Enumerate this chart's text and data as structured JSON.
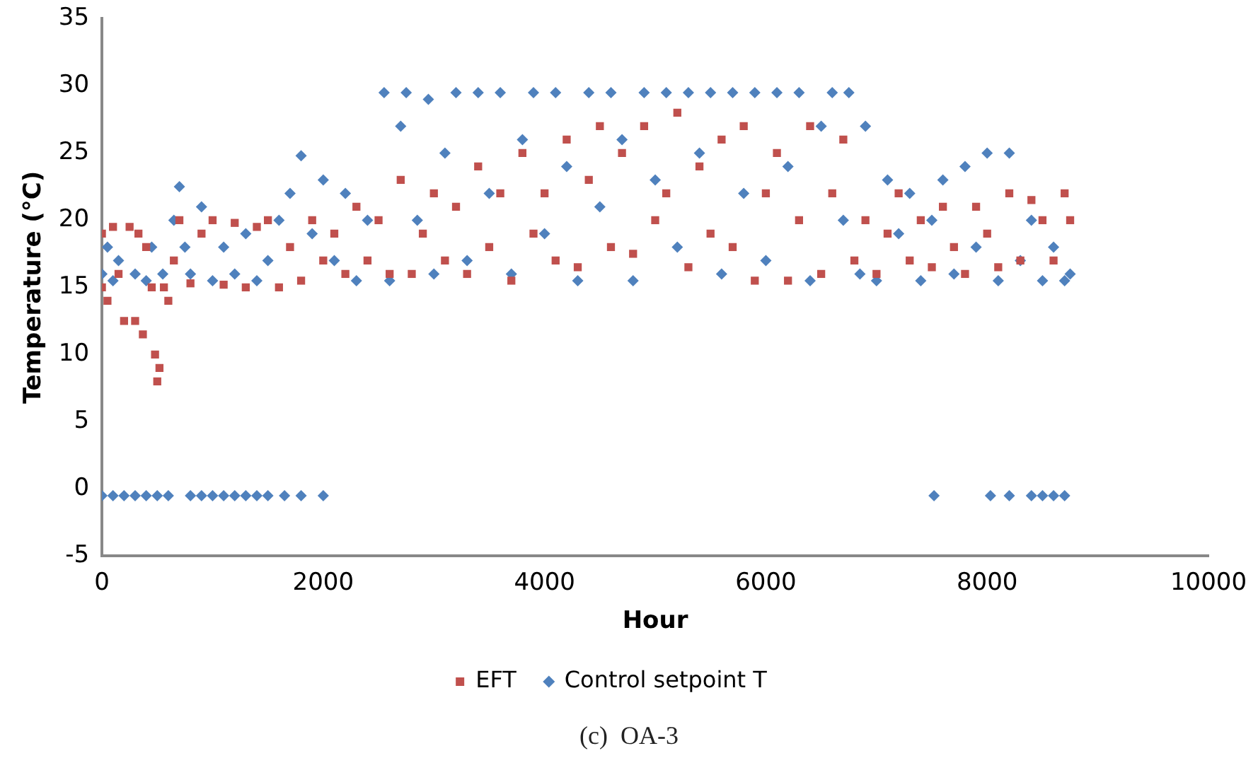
{
  "chart_data": {
    "type": "scatter",
    "xlabel": "Hour",
    "ylabel": "Temperature (°C)",
    "xlim": [
      0,
      10000
    ],
    "xticks": [
      0,
      2000,
      4000,
      6000,
      8000,
      10000
    ],
    "ylim": [
      -5,
      35
    ],
    "yticks": [
      -5,
      0,
      5,
      10,
      15,
      20,
      25,
      30,
      35
    ],
    "grid": false,
    "legend": "bottom",
    "annotations": [
      "(c)  OA-3"
    ],
    "series": [
      {
        "name": "EFT",
        "color": "#c0504d",
        "marker": "square",
        "x": [
          0,
          0,
          50,
          100,
          150,
          200,
          250,
          300,
          330,
          370,
          400,
          450,
          480,
          500,
          520,
          560,
          600,
          650,
          700,
          800,
          900,
          1000,
          1100,
          1200,
          1300,
          1400,
          1500,
          1600,
          1700,
          1800,
          1900,
          2000,
          2100,
          2200,
          2300,
          2400,
          2500,
          2600,
          2700,
          2800,
          2900,
          3000,
          3100,
          3200,
          3300,
          3400,
          3500,
          3600,
          3700,
          3800,
          3900,
          4000,
          4100,
          4200,
          4300,
          4400,
          4500,
          4600,
          4700,
          4800,
          4900,
          5000,
          5100,
          5200,
          5300,
          5400,
          5500,
          5600,
          5700,
          5800,
          5900,
          6000,
          6100,
          6200,
          6300,
          6400,
          6500,
          6600,
          6700,
          6800,
          6900,
          7000,
          7100,
          7200,
          7300,
          7400,
          7500,
          7600,
          7700,
          7800,
          7900,
          8000,
          8100,
          8200,
          8300,
          8400,
          8500,
          8600,
          8700,
          8750
        ],
        "values": [
          19,
          15,
          14,
          19.5,
          16,
          12.5,
          19.5,
          12.5,
          19,
          11.5,
          18,
          15,
          10,
          8,
          9,
          15,
          14,
          17,
          20,
          15.3,
          19,
          20,
          15.2,
          19.8,
          15,
          19.5,
          20,
          15,
          18,
          15.5,
          20,
          17,
          19,
          16,
          21,
          17,
          20,
          16,
          23,
          16,
          19,
          22,
          17,
          21,
          16,
          24,
          18,
          22,
          15.5,
          25,
          19,
          22,
          17,
          26,
          16.5,
          23,
          27,
          18,
          25,
          17.5,
          27,
          20,
          22,
          28,
          16.5,
          24,
          19,
          26,
          18,
          27,
          15.5,
          22,
          25,
          15.5,
          20,
          27,
          16,
          22,
          26,
          17,
          20,
          16,
          19,
          22,
          17,
          20,
          16.5,
          21,
          18,
          16,
          21,
          19,
          16.5,
          22,
          17,
          21.5,
          20,
          17,
          22,
          20
        ]
      },
      {
        "name": "Control setpoint T",
        "color": "#4f81bd",
        "marker": "diamond",
        "x": [
          0,
          50,
          100,
          150,
          300,
          400,
          450,
          550,
          650,
          700,
          750,
          800,
          900,
          1000,
          1100,
          1200,
          1300,
          1400,
          1500,
          1600,
          1700,
          1800,
          1900,
          2000,
          2100,
          2200,
          2300,
          2400,
          2550,
          2600,
          2700,
          2750,
          2850,
          2950,
          3000,
          3100,
          3200,
          3300,
          3400,
          3500,
          3600,
          3700,
          3800,
          3900,
          4000,
          4100,
          4200,
          4300,
          4400,
          4500,
          4600,
          4700,
          4800,
          4900,
          5000,
          5100,
          5200,
          5300,
          5400,
          5500,
          5600,
          5700,
          5800,
          5900,
          6000,
          6100,
          6200,
          6300,
          6400,
          6500,
          6600,
          6700,
          6750,
          6850,
          6900,
          7000,
          7100,
          7200,
          7300,
          7400,
          7500,
          7600,
          7700,
          7800,
          7900,
          8000,
          8100,
          8200,
          8300,
          8400,
          8500,
          8600,
          8700,
          8750,
          0,
          100,
          200,
          300,
          400,
          500,
          600,
          800,
          900,
          1000,
          1100,
          1200,
          1300,
          1400,
          1500,
          1650,
          1800,
          2000,
          7520,
          8030,
          8200,
          8400,
          8500,
          8600,
          8700
        ],
        "values": [
          16,
          18,
          15.5,
          17,
          16,
          15.5,
          18,
          16,
          20,
          22.5,
          18,
          16,
          21,
          15.5,
          18,
          16,
          19,
          15.5,
          17,
          20,
          22,
          24.8,
          19,
          23,
          17,
          22,
          15.5,
          20,
          29.5,
          15.5,
          27,
          29.5,
          20,
          29,
          16,
          25,
          29.5,
          17,
          29.5,
          22,
          29.5,
          16,
          26,
          29.5,
          19,
          29.5,
          24,
          15.5,
          29.5,
          21,
          29.5,
          26,
          15.5,
          29.5,
          23,
          29.5,
          18,
          29.5,
          25,
          29.5,
          16,
          29.5,
          22,
          29.5,
          17,
          29.5,
          24,
          29.5,
          15.5,
          27,
          29.5,
          20,
          29.5,
          16,
          27,
          15.5,
          23,
          19,
          22,
          15.5,
          20,
          23,
          16,
          24,
          18,
          25,
          15.5,
          25,
          17,
          20,
          15.5,
          18,
          15.5,
          16,
          -0.5,
          -0.5,
          -0.5,
          -0.5,
          -0.5,
          -0.5,
          -0.5,
          -0.5,
          -0.5,
          -0.5,
          -0.5,
          -0.5,
          -0.5,
          -0.5,
          -0.5,
          -0.5,
          -0.5,
          -0.5,
          -0.5,
          -0.5,
          -0.5,
          -0.5,
          -0.5,
          -0.5,
          -0.5
        ]
      }
    ]
  }
}
